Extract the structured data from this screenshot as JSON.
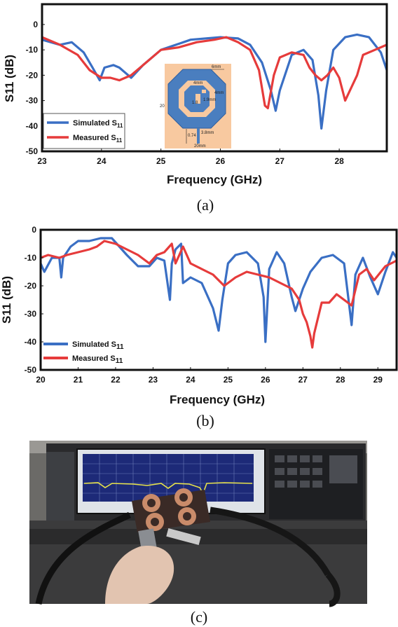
{
  "chart_data": [
    {
      "type": "line",
      "panel": "(a)",
      "xlabel": "Frequency (GHz)",
      "ylabel": "S11 (dB)",
      "xlim": [
        23,
        28.8
      ],
      "ylim": [
        -50,
        8
      ],
      "xticks": [
        23,
        24,
        25,
        26,
        27,
        28
      ],
      "yticks": [
        0,
        -10,
        -20,
        -30,
        -40,
        -50
      ],
      "legend": "bottom-left",
      "series": [
        {
          "name": "Simulated S11",
          "legend_main": "Simulated S",
          "legend_sub": "11",
          "color": "#3a6fc4",
          "x": [
            23.0,
            23.3,
            23.5,
            23.7,
            23.85,
            23.97,
            24.05,
            24.2,
            24.3,
            24.4,
            24.5,
            24.7,
            25.0,
            25.5,
            26.0,
            26.3,
            26.5,
            26.7,
            26.85,
            26.93,
            27.0,
            27.2,
            27.4,
            27.55,
            27.65,
            27.7,
            27.78,
            27.9,
            28.1,
            28.3,
            28.5,
            28.7,
            28.8
          ],
          "y": [
            -6,
            -8,
            -7,
            -11,
            -17,
            -22,
            -17,
            -16,
            -17,
            -19,
            -21,
            -16,
            -10,
            -6,
            -5,
            -5.5,
            -8,
            -15,
            -26,
            -34,
            -26,
            -12,
            -10,
            -14,
            -28,
            -41,
            -26,
            -10,
            -5,
            -4,
            -5,
            -11,
            -18
          ]
        },
        {
          "name": "Measured S11",
          "legend_main": "Measured S",
          "legend_sub": "11",
          "color": "#e63b3b",
          "x": [
            23.0,
            23.3,
            23.6,
            23.8,
            24.0,
            24.15,
            24.3,
            24.5,
            24.8,
            25.0,
            25.3,
            25.6,
            25.9,
            26.1,
            26.3,
            26.5,
            26.65,
            26.75,
            26.8,
            26.9,
            27.0,
            27.2,
            27.4,
            27.5,
            27.6,
            27.7,
            27.8,
            27.9,
            28.0,
            28.1,
            28.2,
            28.3,
            28.4,
            28.6,
            28.8
          ],
          "y": [
            -5,
            -8,
            -12,
            -18,
            -21,
            -21,
            -22,
            -20,
            -14,
            -10,
            -9,
            -7,
            -6,
            -5,
            -7,
            -10,
            -18,
            -32,
            -33,
            -20,
            -13,
            -11,
            -12,
            -17,
            -20,
            -22,
            -20,
            -17,
            -21,
            -30,
            -25,
            -20,
            -12,
            -10,
            -8
          ]
        }
      ],
      "inset_labels": [
        "6mm",
        "4mm",
        "4mm",
        "1.9mm",
        "1.8",
        "20",
        "0.74",
        "3.8mm",
        "20mm"
      ]
    },
    {
      "type": "line",
      "panel": "(b)",
      "xlabel": "Frequency (GHz)",
      "ylabel": "S11 (dB)",
      "xlim": [
        20,
        29.5
      ],
      "ylim": [
        -50,
        0
      ],
      "xticks": [
        20,
        21,
        22,
        23,
        24,
        25,
        26,
        27,
        28,
        29
      ],
      "yticks": [
        0,
        -10,
        -20,
        -30,
        -40,
        -50
      ],
      "legend": "bottom-left",
      "series": [
        {
          "name": "Simulated S11",
          "legend_main": "Simulated S",
          "legend_sub": "11",
          "color": "#3a6fc4",
          "x": [
            20.0,
            20.1,
            20.3,
            20.5,
            20.55,
            20.6,
            20.8,
            21.0,
            21.3,
            21.6,
            21.9,
            22.1,
            22.3,
            22.6,
            22.9,
            23.1,
            23.3,
            23.45,
            23.5,
            23.6,
            23.75,
            23.8,
            24.0,
            24.3,
            24.6,
            24.75,
            24.85,
            25.0,
            25.2,
            25.5,
            25.8,
            25.95,
            26.0,
            26.1,
            26.3,
            26.5,
            26.7,
            26.8,
            27.0,
            27.2,
            27.5,
            27.8,
            28.1,
            28.3,
            28.4,
            28.6,
            28.8,
            29.0,
            29.2,
            29.4,
            29.5
          ],
          "y": [
            -12,
            -15,
            -10,
            -10,
            -17,
            -10,
            -6,
            -4,
            -4,
            -3,
            -3,
            -6,
            -9,
            -13,
            -13,
            -10,
            -11,
            -25,
            -12,
            -7,
            -5,
            -19,
            -17,
            -19,
            -28,
            -36,
            -25,
            -12,
            -9,
            -8,
            -12,
            -24,
            -40,
            -14,
            -8,
            -12,
            -24,
            -29,
            -21,
            -15,
            -10,
            -9,
            -12,
            -34,
            -16,
            -10,
            -17,
            -23,
            -15,
            -8,
            -10
          ]
        },
        {
          "name": "Measured S11",
          "legend_main": "Measured S",
          "legend_sub": "11",
          "color": "#e63b3b",
          "x": [
            20.0,
            20.2,
            20.5,
            20.7,
            21.0,
            21.3,
            21.5,
            21.7,
            22.0,
            22.3,
            22.6,
            22.9,
            23.1,
            23.3,
            23.5,
            23.6,
            23.7,
            23.8,
            24.0,
            24.3,
            24.6,
            24.9,
            25.2,
            25.5,
            25.8,
            26.1,
            26.4,
            26.7,
            26.9,
            27.0,
            27.1,
            27.2,
            27.25,
            27.3,
            27.5,
            27.7,
            27.9,
            28.1,
            28.3,
            28.5,
            28.7,
            28.9,
            29.2,
            29.5
          ],
          "y": [
            -10,
            -9,
            -10,
            -9,
            -8,
            -7,
            -6,
            -4,
            -5,
            -7,
            -9,
            -12,
            -9,
            -8,
            -5,
            -12,
            -9,
            -6,
            -12,
            -14,
            -16,
            -20,
            -17,
            -15,
            -16,
            -17,
            -19,
            -21,
            -25,
            -30,
            -33,
            -38,
            -42,
            -37,
            -26,
            -26,
            -23,
            -25,
            -27,
            -16,
            -14,
            -18,
            -13,
            -11
          ]
        }
      ]
    }
  ],
  "captions": {
    "a": "(a)",
    "b": "(b)",
    "c": "(c)"
  }
}
